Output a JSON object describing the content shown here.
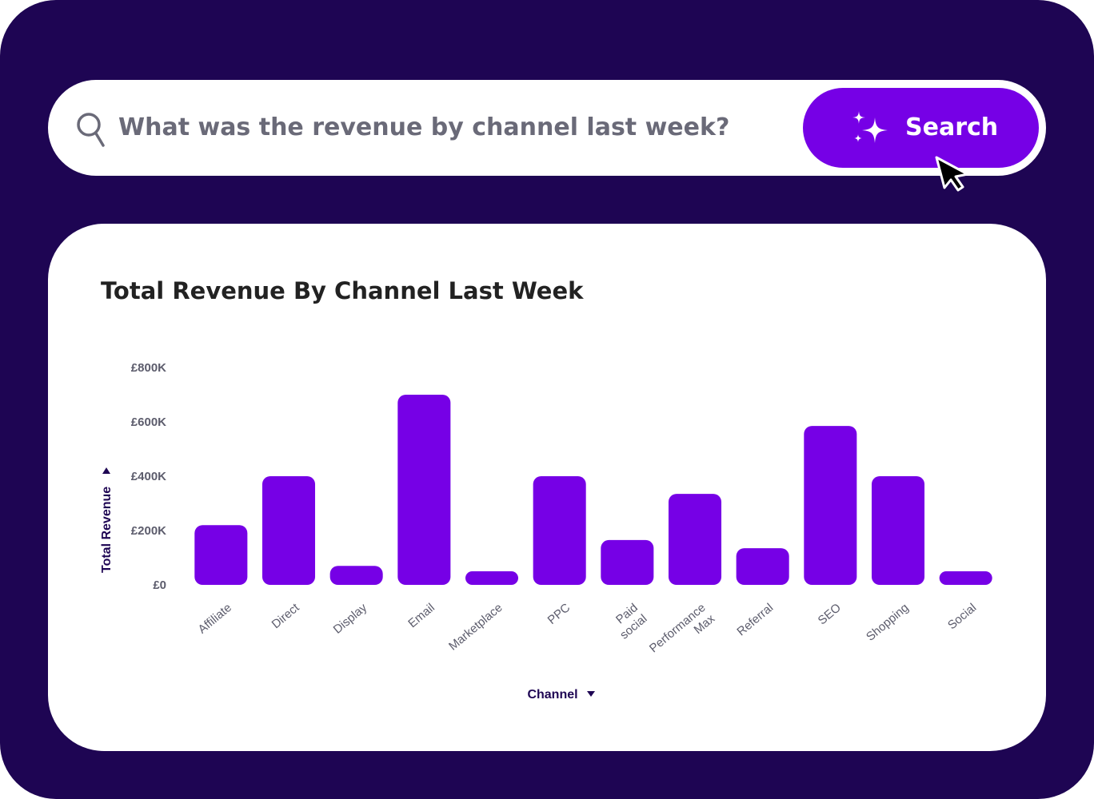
{
  "search": {
    "query": "What was the revenue by channel last week?",
    "button_label": "Search",
    "icon": "search-icon",
    "button_icon": "sparkle-icon"
  },
  "colors": {
    "background": "#1e0553",
    "accent": "#7600e6",
    "card": "#ffffff"
  },
  "chart_data": {
    "type": "bar",
    "title": "Total Revenue By Channel Last Week",
    "xlabel": "Channel",
    "ylabel": "Total Revenue",
    "categories": [
      "Affiliate",
      "Direct",
      "Display",
      "Email",
      "Marketplace",
      "PPC",
      "Paid social",
      "Performance Max",
      "Referral",
      "SEO",
      "Shopping",
      "Social"
    ],
    "category_lines": [
      [
        "Affiliate"
      ],
      [
        "Direct"
      ],
      [
        "Display"
      ],
      [
        "Email"
      ],
      [
        "Marketplace"
      ],
      [
        "PPC"
      ],
      [
        "Paid",
        "social"
      ],
      [
        "Performance",
        "Max"
      ],
      [
        "Referral"
      ],
      [
        "SEO"
      ],
      [
        "Shopping"
      ],
      [
        "Social"
      ]
    ],
    "values": [
      220000,
      400000,
      70000,
      700000,
      50000,
      400000,
      165000,
      335000,
      135000,
      585000,
      400000,
      50000
    ],
    "ylim": [
      0,
      800000
    ],
    "yticks": [
      0,
      200000,
      400000,
      600000,
      800000
    ],
    "ytick_labels": [
      "£0",
      "£200K",
      "£400K",
      "£600K",
      "£800K"
    ],
    "grid": false,
    "legend": "none"
  }
}
